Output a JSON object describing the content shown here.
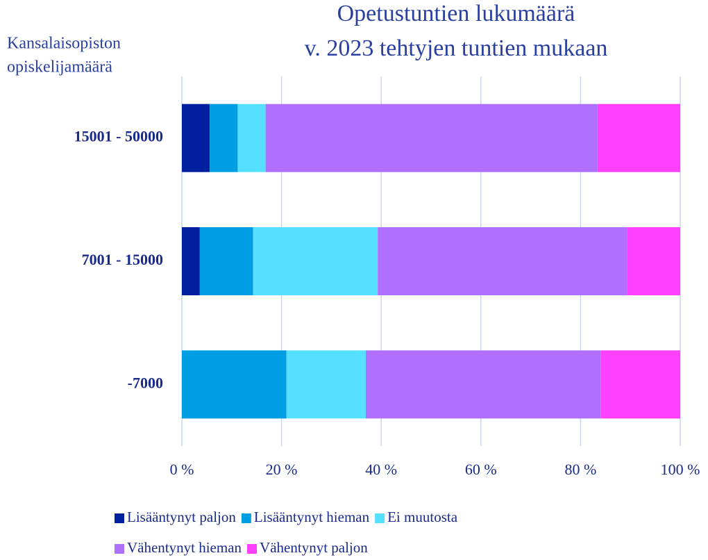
{
  "chart_data": {
    "type": "stacked_barh",
    "title": [
      "Opetustuntien lukumäärä",
      "v. 2023 tehtyjen tuntien mukaan"
    ],
    "ylabel": [
      "Kansalaisopiston",
      "opiskelijamäärä"
    ],
    "categories": [
      "15001 - 50000",
      "7001 - 15000",
      "-7000"
    ],
    "series": [
      {
        "name": "Lisääntynyt paljon",
        "color": "#00209f",
        "values": [
          5.6,
          3.6,
          0
        ]
      },
      {
        "name": "Lisääntynyt hieman",
        "color": "#009fe3",
        "values": [
          5.6,
          10.7,
          21
        ]
      },
      {
        "name": "Ei muutosta",
        "color": "#55e0ff",
        "values": [
          5.6,
          25,
          15.9
        ]
      },
      {
        "name": "Vähentynyt hieman",
        "color": "#b070ff",
        "values": [
          66.6,
          50,
          47.2
        ]
      },
      {
        "name": "Vähentynyt paljon",
        "color": "#ff40ff",
        "values": [
          16.6,
          10.7,
          15.9
        ]
      }
    ],
    "xlim": [
      0,
      100
    ],
    "xticks": [
      {
        "value": 0,
        "label": "0 %"
      },
      {
        "value": 20,
        "label": "20 %"
      },
      {
        "value": 40,
        "label": "40 %"
      },
      {
        "value": 60,
        "label": "60 %"
      },
      {
        "value": 80,
        "label": "80 %"
      },
      {
        "value": 100,
        "label": "100 %"
      }
    ],
    "grid": true
  }
}
